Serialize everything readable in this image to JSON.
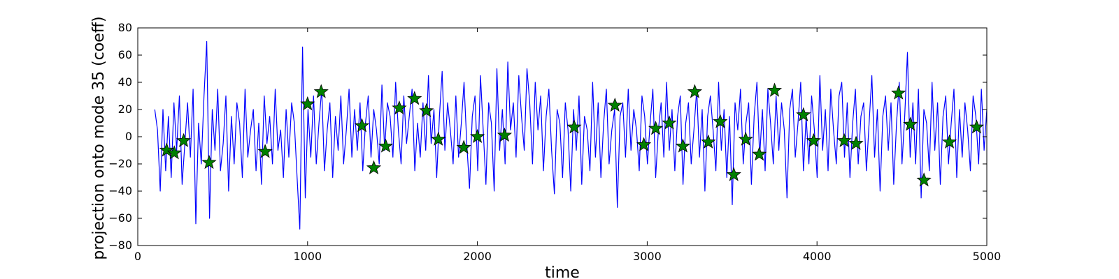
{
  "chart_data": {
    "type": "line",
    "title": "",
    "xlabel": "time",
    "ylabel": "projection onto mode 35 (coeff)",
    "xlim": [
      0,
      5000
    ],
    "ylim": [
      -80,
      80
    ],
    "xticks": [
      0,
      1000,
      2000,
      3000,
      4000,
      5000
    ],
    "yticks": [
      -80,
      -60,
      -40,
      -20,
      0,
      20,
      40,
      60,
      80
    ],
    "grid": false,
    "legend": "none",
    "colors": {
      "line": "#0000ff",
      "marker_fill": "#008000",
      "marker_edge": "#000000"
    },
    "series": [
      {
        "kind": "line",
        "x_start": 100,
        "x_end": 5000,
        "y": [
          20,
          5,
          -40,
          20,
          -25,
          15,
          -30,
          25,
          -10,
          30,
          -35,
          -5,
          25,
          -15,
          35,
          -64,
          10,
          -20,
          30,
          70,
          -60,
          20,
          -10,
          35,
          -25,
          -5,
          30,
          -40,
          15,
          -20,
          25,
          10,
          -30,
          35,
          -15,
          5,
          20,
          -25,
          10,
          -35,
          30,
          -5,
          15,
          -20,
          35,
          -10,
          5,
          -30,
          20,
          -15,
          25,
          10,
          -30,
          -68,
          66,
          -45,
          20,
          -15,
          30,
          -20,
          10,
          35,
          -25,
          5,
          25,
          -30,
          15,
          -10,
          30,
          -20,
          5,
          35,
          -15,
          20,
          -10,
          25,
          -25,
          10,
          30,
          -15,
          20,
          5,
          -20,
          38,
          -10,
          25,
          15,
          -15,
          40,
          5,
          -20,
          30,
          -5,
          15,
          35,
          -25,
          10,
          -15,
          25,
          -10,
          45,
          -5,
          20,
          -30,
          15,
          48,
          -10,
          25,
          5,
          -20,
          30,
          -15,
          10,
          40,
          -5,
          -38,
          15,
          30,
          -25,
          45,
          5,
          -35,
          25,
          10,
          -40,
          50,
          -10,
          20,
          -20,
          55,
          5,
          25,
          -15,
          45,
          15,
          -10,
          50,
          25,
          -20,
          40,
          5,
          30,
          -25,
          15,
          35,
          -10,
          -42,
          20,
          10,
          -30,
          25,
          5,
          -40,
          20,
          -10,
          30,
          -35,
          15,
          5,
          -25,
          40,
          -15,
          25,
          -30,
          10,
          35,
          -20,
          5,
          20,
          -52,
          15,
          25,
          -15,
          35,
          -10,
          20,
          5,
          -25,
          30,
          15,
          -20,
          10,
          35,
          -30,
          5,
          25,
          -15,
          40,
          -10,
          20,
          -25,
          15,
          30,
          -35,
          10,
          25,
          -20,
          5,
          35,
          -15,
          20,
          -40,
          15,
          30,
          5,
          -25,
          40,
          -10,
          20,
          -30,
          15,
          -50,
          25,
          5,
          35,
          -20,
          10,
          25,
          -35,
          15,
          40,
          -15,
          20,
          -25,
          35,
          10,
          -20,
          30,
          -10,
          25,
          5,
          -45,
          20,
          35,
          -15,
          10,
          40,
          -25,
          15,
          -20,
          30,
          5,
          -30,
          45,
          -10,
          20,
          -25,
          35,
          5,
          -20,
          30,
          40,
          -15,
          25,
          -30,
          10,
          35,
          -20,
          15,
          25,
          -25,
          10,
          45,
          -15,
          20,
          -40,
          15,
          30,
          -10,
          25,
          -35,
          10,
          40,
          -20,
          15,
          62,
          -15,
          25,
          -20,
          35,
          -45,
          20,
          10,
          -25,
          40,
          -10,
          25,
          -35,
          15,
          30,
          -20,
          10,
          35,
          -30,
          20,
          -15,
          25,
          5,
          -25,
          30,
          15,
          -20,
          35,
          -10,
          20
        ]
      },
      {
        "kind": "markers",
        "marker": "star",
        "points": [
          [
            170,
            -10
          ],
          [
            215,
            -12
          ],
          [
            270,
            -3
          ],
          [
            420,
            -19
          ],
          [
            750,
            -11
          ],
          [
            1000,
            24
          ],
          [
            1080,
            33
          ],
          [
            1320,
            8
          ],
          [
            1390,
            -23
          ],
          [
            1460,
            -7
          ],
          [
            1540,
            21
          ],
          [
            1630,
            28
          ],
          [
            1700,
            19
          ],
          [
            1770,
            -2
          ],
          [
            1920,
            -8
          ],
          [
            2000,
            0
          ],
          [
            2160,
            1
          ],
          [
            2570,
            7
          ],
          [
            2810,
            23
          ],
          [
            2980,
            -6
          ],
          [
            3050,
            6
          ],
          [
            3130,
            10
          ],
          [
            3210,
            -7
          ],
          [
            3280,
            33
          ],
          [
            3360,
            -4
          ],
          [
            3430,
            11
          ],
          [
            3510,
            -28
          ],
          [
            3580,
            -2
          ],
          [
            3660,
            -13
          ],
          [
            3750,
            34
          ],
          [
            3920,
            16
          ],
          [
            3980,
            -3
          ],
          [
            4160,
            -3
          ],
          [
            4230,
            -5
          ],
          [
            4480,
            32
          ],
          [
            4550,
            9
          ],
          [
            4630,
            -32
          ],
          [
            4780,
            -4
          ],
          [
            4940,
            7
          ]
        ]
      }
    ]
  }
}
